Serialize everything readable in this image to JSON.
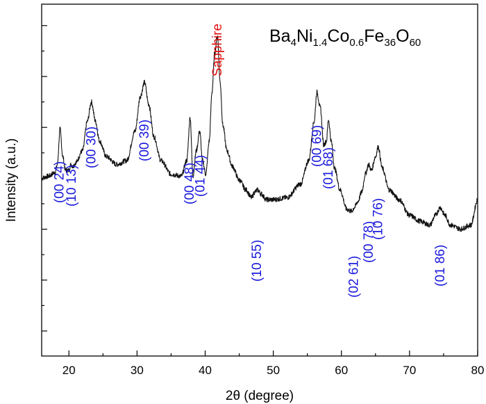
{
  "chart_data": {
    "type": "line",
    "xlabel": "2θ (degree)",
    "ylabel": "Intensity (a.u.)",
    "xlim": [
      16,
      80
    ],
    "x_ticks": [
      20,
      30,
      40,
      50,
      60,
      70,
      80
    ],
    "y_tick_labels_shown": false,
    "grid": false,
    "legend": "none",
    "annotation_color": "#1a1adc",
    "sapphire_color": "#e01010",
    "formula": {
      "parts": [
        {
          "text": "Ba",
          "sub": "4"
        },
        {
          "text": "Ni",
          "sub": "1.4"
        },
        {
          "text": "Co",
          "sub": "0.6"
        },
        {
          "text": "Fe",
          "sub": "36"
        },
        {
          "text": "O",
          "sub": "60"
        }
      ]
    },
    "series": [
      {
        "x": [
          16.0,
          17.0,
          18.0,
          18.3,
          18.7,
          19.1,
          19.5,
          20.0,
          20.3,
          20.6,
          21.0,
          22.0,
          22.7,
          23.3,
          23.9,
          24.5,
          25.5,
          27.0,
          28.5,
          29.7,
          30.5,
          31.1,
          31.7,
          32.5,
          33.5,
          35.0,
          36.5,
          37.3,
          37.8,
          38.2,
          38.7,
          39.2,
          39.6,
          40.1,
          40.6,
          41.0,
          41.4,
          41.8,
          42.2,
          42.6,
          43.2,
          44.0,
          45.0,
          46.0,
          46.8,
          47.3,
          47.7,
          48.2,
          49.0,
          50.0,
          52.0,
          54.0,
          55.2,
          56.0,
          56.4,
          56.9,
          57.4,
          57.8,
          58.1,
          58.5,
          59.0,
          59.8,
          60.8,
          61.5,
          61.9,
          62.4,
          63.0,
          63.5,
          64.0,
          64.4,
          65.0,
          65.4,
          66.0,
          67.0,
          68.5,
          70.0,
          71.5,
          73.0,
          73.8,
          74.5,
          75.2,
          76.0,
          77.5,
          79.0,
          80.0
        ],
        "y": [
          11.0,
          12.0,
          14.0,
          18.0,
          36.0,
          22.0,
          15.0,
          15.0,
          18.0,
          17.0,
          19.0,
          25.0,
          40.0,
          50.0,
          40.0,
          30.0,
          22.0,
          18.0,
          20.0,
          35.0,
          53.0,
          60.0,
          49.0,
          32.0,
          20.0,
          13.0,
          12.0,
          20.0,
          42.0,
          12.0,
          25.0,
          35.0,
          20.0,
          13.0,
          30.0,
          55.0,
          75.0,
          84.0,
          60.0,
          38.0,
          25.0,
          17.0,
          10.0,
          5.0,
          1.0,
          4.0,
          5.0,
          3.0,
          0.0,
          0.0,
          1.0,
          8.0,
          20.0,
          40.0,
          55.0,
          47.0,
          28.0,
          30.0,
          41.0,
          30.0,
          16.0,
          5.0,
          -5.0,
          -6.0,
          -4.0,
          -1.0,
          4.0,
          13.0,
          18.0,
          15.0,
          22.0,
          27.0,
          16.0,
          5.0,
          0.0,
          -8.0,
          -11.0,
          -13.0,
          -8.0,
          -4.0,
          -8.0,
          -13.0,
          -15.0,
          -13.0,
          0.0
        ]
      }
    ],
    "annotations": [
      {
        "text": "(00 24)",
        "x": 18.6
      },
      {
        "text": "(10 13)",
        "x": 20.4
      },
      {
        "text": "(00 30)",
        "x": 23.3
      },
      {
        "text": "(00 39)",
        "x": 31.1
      },
      {
        "text": "(00 48)",
        "x": 37.7
      },
      {
        "text": "(01 44)",
        "x": 39.3
      },
      {
        "text": "Sapphire",
        "x": 41.8
      },
      {
        "text": "(10 55)",
        "x": 47.6
      },
      {
        "text": "(00 69)",
        "x": 56.4
      },
      {
        "text": "(01 68)",
        "x": 58.1
      },
      {
        "text": "(02 61)",
        "x": 61.8
      },
      {
        "text": "(00 78)",
        "x": 64.0
      },
      {
        "text": "(10 76)",
        "x": 65.4
      },
      {
        "text": "(01 86)",
        "x": 74.5
      }
    ]
  }
}
